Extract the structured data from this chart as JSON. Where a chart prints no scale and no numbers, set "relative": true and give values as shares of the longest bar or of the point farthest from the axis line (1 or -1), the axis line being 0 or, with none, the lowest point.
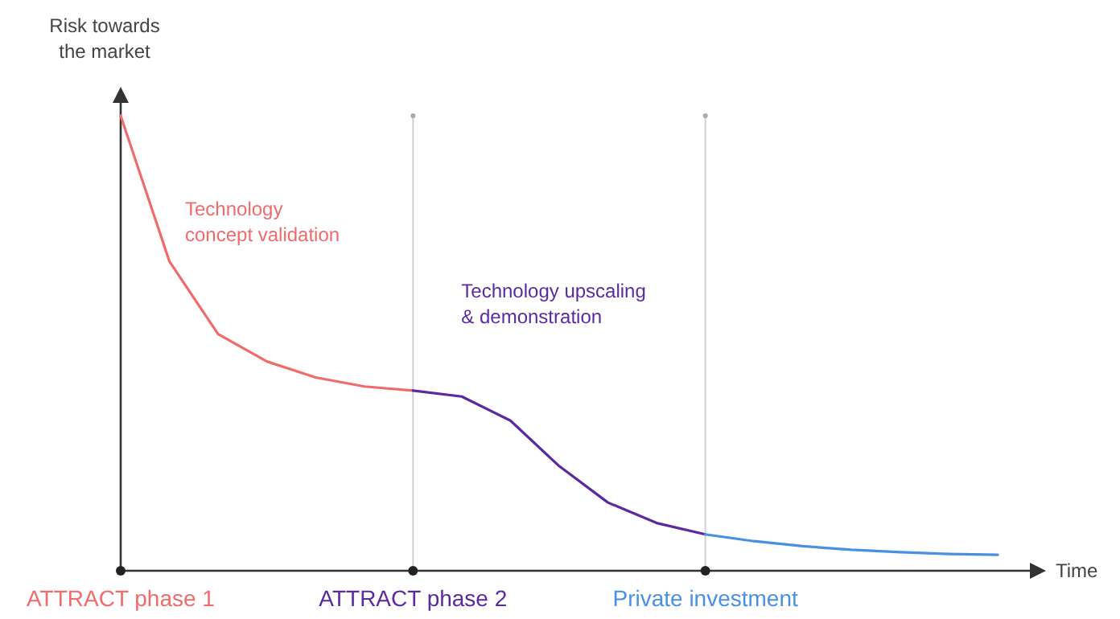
{
  "chart_data": {
    "type": "line",
    "relative": true,
    "ylabel": "Risk towards the market",
    "xlabel": "Time",
    "categories": [
      "ATTRACT phase 1",
      null,
      null,
      null,
      null,
      null,
      "ATTRACT phase 2",
      null,
      null,
      null,
      null,
      null,
      "Private investment",
      null,
      null,
      null,
      null,
      null,
      null
    ],
    "grid": "x",
    "legend": false,
    "marker": "none",
    "line_style": "solid",
    "series": [
      {
        "name": "Technology\nconcept validation",
        "color": "#f06b6b",
        "values": [
          1,
          0.68,
          0.52,
          0.46,
          0.425,
          0.405,
          0.396,
          null,
          null,
          null,
          null,
          null,
          null,
          null,
          null,
          null,
          null,
          null,
          null
        ]
      },
      {
        "name": "Technology upscaling\n& demonstration",
        "color": "#5b2aa0",
        "values": [
          null,
          null,
          null,
          null,
          null,
          null,
          0.396,
          0.383,
          0.33,
          0.23,
          0.15,
          0.105,
          0.08,
          null,
          null,
          null,
          null,
          null,
          null
        ]
      },
      {
        "color": "#4a90e2",
        "values": [
          null,
          null,
          null,
          null,
          null,
          null,
          null,
          null,
          null,
          null,
          null,
          null,
          0.08,
          0.065,
          0.054,
          0.046,
          0.041,
          0.037,
          0.035
        ]
      }
    ]
  }
}
